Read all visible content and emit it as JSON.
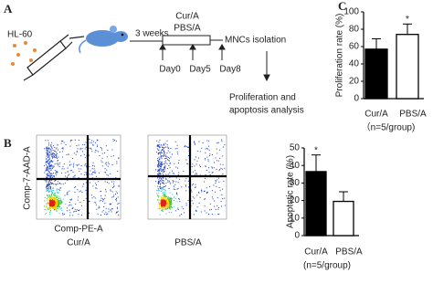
{
  "panel_a": {
    "label": "A",
    "cell_line": "HL-60",
    "duration": "3 weeks",
    "treatment": "Cur/A",
    "control": "PBS/A",
    "days": [
      "Day0",
      "Day5",
      "Day8"
    ],
    "step": "MNCs isolation",
    "outcome": [
      "Proliferation and",
      "apoptosis analysis"
    ]
  },
  "panel_b": {
    "label": "B",
    "plots": [
      {
        "title": "Cur/A"
      },
      {
        "title": "PBS/A"
      }
    ],
    "y_axis": "Comp-7-AAD-A",
    "x_axis": "Comp-PE-A"
  },
  "panel_c": {
    "label": "C"
  },
  "chart_data": [
    {
      "type": "bar",
      "y_label": "Proliferation rate (%)",
      "categories": [
        "Cur/A",
        "PBS/A"
      ],
      "x_note": "（n=5/group)",
      "values": [
        57,
        74
      ],
      "errors": [
        12,
        12
      ],
      "colors": [
        "#000000",
        "#ffffff"
      ],
      "significance": [
        null,
        "*"
      ],
      "ylim": [
        0,
        100
      ],
      "yticks": [
        0,
        20,
        40,
        60,
        80,
        100
      ]
    },
    {
      "type": "bar",
      "y_label": "Apoptotic rate (%)",
      "categories": [
        "Cur/A",
        "PBS/A"
      ],
      "x_note": "(n=5/group)",
      "values": [
        36.5,
        19.5
      ],
      "errors": [
        9.5,
        5.5
      ],
      "colors": [
        "#000000",
        "#ffffff"
      ],
      "significance": [
        "*",
        null
      ],
      "ylim": [
        0,
        50
      ],
      "yticks": [
        0,
        10,
        20,
        30,
        40,
        50
      ]
    }
  ]
}
